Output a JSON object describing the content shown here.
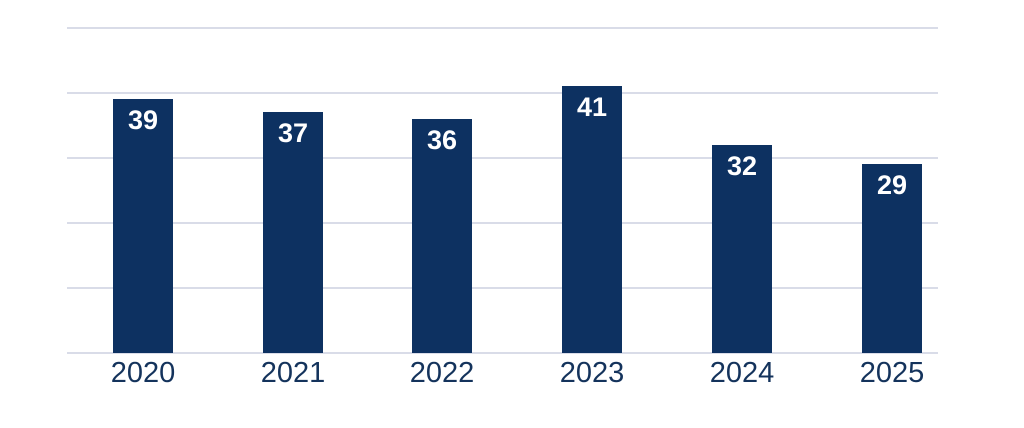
{
  "chart_data": {
    "type": "bar",
    "title": "",
    "xlabel": "",
    "ylabel": "",
    "categories": [
      "2020",
      "2021",
      "2022",
      "2023",
      "2024",
      "2025"
    ],
    "values": [
      39,
      37,
      36,
      41,
      32,
      29
    ],
    "ylim": [
      0,
      50
    ],
    "gridline_values": [
      0,
      10,
      20,
      30,
      40,
      50
    ],
    "grid": true,
    "legend": false,
    "y_axis_tick_labels_visible": false,
    "value_labels_position": "inside-top",
    "colors": {
      "bar": "#0d3161",
      "value_label": "#ffffff",
      "axis_label": "#14335c",
      "gridline": "#d9dce8"
    }
  }
}
